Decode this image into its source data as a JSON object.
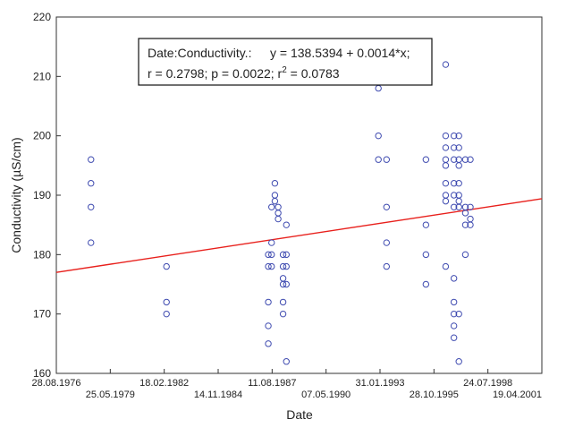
{
  "chart_data": {
    "type": "scatter",
    "xlabel": "Date",
    "ylabel": "Conductivity (µS/cm)",
    "xlim": [
      "1976-08-28",
      "2001-04-19"
    ],
    "ylim": [
      160,
      220
    ],
    "y_ticks": [
      160,
      170,
      180,
      190,
      200,
      210,
      220
    ],
    "x_ticks": [
      {
        "date": "1976-08-28",
        "label": "28.08.1976"
      },
      {
        "date": "1979-05-25",
        "label": "25.05.1979"
      },
      {
        "date": "1982-02-18",
        "label": "18.02.1982"
      },
      {
        "date": "1984-11-14",
        "label": "14.11.1984"
      },
      {
        "date": "1987-08-11",
        "label": "11.08.1987"
      },
      {
        "date": "1990-05-07",
        "label": "07.05.1990"
      },
      {
        "date": "1993-01-31",
        "label": "31.01.1993"
      },
      {
        "date": "1995-10-28",
        "label": "28.10.1995"
      },
      {
        "date": "1998-07-24",
        "label": "24.07.1998"
      },
      {
        "date": "2001-04-19",
        "label": "19.04.2001"
      }
    ],
    "grid": false,
    "point_color": "#3f4bb0",
    "fit_line_color": "#e8201c",
    "fit_line": {
      "x": [
        "1976-08-28",
        "2001-04-19"
      ],
      "y": [
        177.0,
        189.4
      ]
    },
    "annotation": {
      "line1_prefix": "Date:Conductivity.:",
      "line1_equation": "y = 138.5394 + 0.0014*x;",
      "line2_base": "r = 0.2798; p = 0.0022; r",
      "line2_sup": "2",
      "line2_rest": " = 0.0783"
    },
    "points": [
      {
        "x": "1978-06-01",
        "y": 196
      },
      {
        "x": "1978-06-01",
        "y": 192
      },
      {
        "x": "1978-06-01",
        "y": 188
      },
      {
        "x": "1978-06-01",
        "y": 182
      },
      {
        "x": "1982-04-01",
        "y": 178
      },
      {
        "x": "1982-04-01",
        "y": 172
      },
      {
        "x": "1982-04-01",
        "y": 170
      },
      {
        "x": "1987-06-01",
        "y": 180
      },
      {
        "x": "1987-06-01",
        "y": 178
      },
      {
        "x": "1987-06-01",
        "y": 172
      },
      {
        "x": "1987-06-01",
        "y": 168
      },
      {
        "x": "1987-06-01",
        "y": 165
      },
      {
        "x": "1987-08-01",
        "y": 188
      },
      {
        "x": "1987-08-01",
        "y": 182
      },
      {
        "x": "1987-08-01",
        "y": 180
      },
      {
        "x": "1987-08-01",
        "y": 178
      },
      {
        "x": "1987-10-01",
        "y": 192
      },
      {
        "x": "1987-10-01",
        "y": 190
      },
      {
        "x": "1987-10-01",
        "y": 189
      },
      {
        "x": "1987-12-01",
        "y": 188
      },
      {
        "x": "1987-12-01",
        "y": 187
      },
      {
        "x": "1987-12-01",
        "y": 186
      },
      {
        "x": "1988-03-01",
        "y": 180
      },
      {
        "x": "1988-03-01",
        "y": 178
      },
      {
        "x": "1988-03-01",
        "y": 176
      },
      {
        "x": "1988-03-01",
        "y": 175
      },
      {
        "x": "1988-03-01",
        "y": 172
      },
      {
        "x": "1988-03-01",
        "y": 170
      },
      {
        "x": "1988-05-01",
        "y": 185
      },
      {
        "x": "1988-05-01",
        "y": 180
      },
      {
        "x": "1988-05-01",
        "y": 178
      },
      {
        "x": "1988-05-01",
        "y": 175
      },
      {
        "x": "1988-05-01",
        "y": 162
      },
      {
        "x": "1993-01-01",
        "y": 208
      },
      {
        "x": "1993-01-01",
        "y": 200
      },
      {
        "x": "1993-01-01",
        "y": 196
      },
      {
        "x": "1993-06-01",
        "y": 196
      },
      {
        "x": "1993-06-01",
        "y": 188
      },
      {
        "x": "1993-06-01",
        "y": 182
      },
      {
        "x": "1993-06-01",
        "y": 178
      },
      {
        "x": "1995-06-01",
        "y": 196
      },
      {
        "x": "1995-06-01",
        "y": 185
      },
      {
        "x": "1995-06-01",
        "y": 180
      },
      {
        "x": "1995-06-01",
        "y": 175
      },
      {
        "x": "1996-06-01",
        "y": 212
      },
      {
        "x": "1996-06-01",
        "y": 200
      },
      {
        "x": "1996-06-01",
        "y": 198
      },
      {
        "x": "1996-06-01",
        "y": 196
      },
      {
        "x": "1996-06-01",
        "y": 195
      },
      {
        "x": "1996-06-01",
        "y": 192
      },
      {
        "x": "1996-06-01",
        "y": 190
      },
      {
        "x": "1996-06-01",
        "y": 189
      },
      {
        "x": "1996-06-01",
        "y": 178
      },
      {
        "x": "1996-11-01",
        "y": 200
      },
      {
        "x": "1996-11-01",
        "y": 198
      },
      {
        "x": "1996-11-01",
        "y": 196
      },
      {
        "x": "1996-11-01",
        "y": 192
      },
      {
        "x": "1996-11-01",
        "y": 190
      },
      {
        "x": "1996-11-01",
        "y": 188
      },
      {
        "x": "1996-11-01",
        "y": 176
      },
      {
        "x": "1996-11-01",
        "y": 172
      },
      {
        "x": "1996-11-01",
        "y": 170
      },
      {
        "x": "1996-11-01",
        "y": 168
      },
      {
        "x": "1996-11-01",
        "y": 166
      },
      {
        "x": "1997-02-01",
        "y": 200
      },
      {
        "x": "1997-02-01",
        "y": 198
      },
      {
        "x": "1997-02-01",
        "y": 196
      },
      {
        "x": "1997-02-01",
        "y": 195
      },
      {
        "x": "1997-02-01",
        "y": 192
      },
      {
        "x": "1997-02-01",
        "y": 190
      },
      {
        "x": "1997-02-01",
        "y": 189
      },
      {
        "x": "1997-02-01",
        "y": 188
      },
      {
        "x": "1997-02-01",
        "y": 170
      },
      {
        "x": "1997-02-01",
        "y": 162
      },
      {
        "x": "1997-06-01",
        "y": 196
      },
      {
        "x": "1997-06-01",
        "y": 188
      },
      {
        "x": "1997-06-01",
        "y": 187
      },
      {
        "x": "1997-06-01",
        "y": 185
      },
      {
        "x": "1997-06-01",
        "y": 180
      },
      {
        "x": "1997-09-01",
        "y": 196
      },
      {
        "x": "1997-09-01",
        "y": 188
      },
      {
        "x": "1997-09-01",
        "y": 186
      },
      {
        "x": "1997-09-01",
        "y": 185
      }
    ]
  }
}
